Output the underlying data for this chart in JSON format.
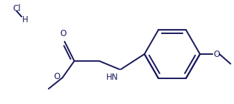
{
  "bg_color": "#ffffff",
  "line_color": "#1a1a5e",
  "lw": 1.5,
  "fs": 8.5,
  "figsize": [
    3.37,
    1.5
  ],
  "dpi": 100,
  "xlim": [
    0,
    337
  ],
  "ylim": [
    0,
    150
  ]
}
